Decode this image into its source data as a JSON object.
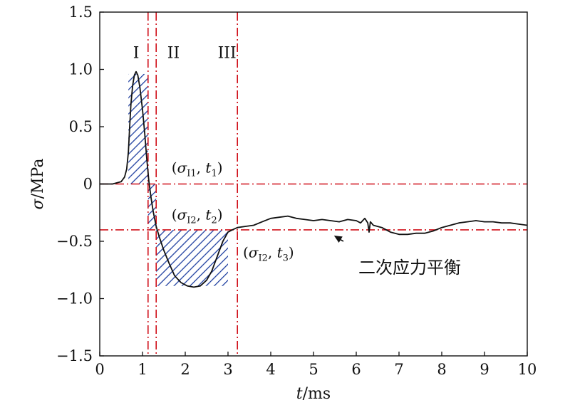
{
  "chart_data": {
    "type": "line",
    "xlabel": {
      "var": "t",
      "unit": "/ms"
    },
    "ylabel": {
      "var": "σ",
      "unit": "/MPa"
    },
    "xlim": [
      0,
      10
    ],
    "ylim": [
      -1.5,
      1.5
    ],
    "x_ticks": [
      0,
      1,
      2,
      3,
      4,
      5,
      6,
      7,
      8,
      9,
      10
    ],
    "y_ticks": [
      1.5,
      1.0,
      0.5,
      0,
      -0.5,
      -1.0,
      -1.5
    ],
    "y_tick_labels": [
      "1.5",
      "1.0",
      "0.5",
      "0",
      "−0.5",
      "−1.0",
      "−1.5"
    ],
    "colors": {
      "curve": "#111111",
      "guide": "#d0101a",
      "hatch": "#1f3fa0"
    },
    "reference_lines": {
      "vertical_x": [
        1.13,
        1.32,
        3.22
      ],
      "horizontal_y": [
        0,
        -0.4
      ]
    },
    "region_labels": [
      {
        "text": "I",
        "x": 0.78,
        "y": 1.1
      },
      {
        "text": "II",
        "x": 1.58,
        "y": 1.1
      },
      {
        "text": "III",
        "x": 2.76,
        "y": 1.1
      }
    ],
    "hatched_regions": [
      {
        "x0": 0.67,
        "x1": 1.13,
        "y0": 0,
        "y1": 0.96
      },
      {
        "x0": 1.13,
        "x1": 1.32,
        "y0": -0.4,
        "y1": 0
      },
      {
        "x0": 1.32,
        "x1": 3.0,
        "y0": -0.89,
        "y1": -0.4
      }
    ],
    "annotations": [
      {
        "base": "σ",
        "sub": "I1",
        "tvar": "t",
        "tsub": "1",
        "x": 1.68,
        "y": 0.1
      },
      {
        "base": "σ",
        "sub": "I2",
        "tvar": "t",
        "tsub": "2",
        "x": 1.68,
        "y": -0.31
      },
      {
        "base": "σ",
        "sub": "I2",
        "tvar": "t",
        "tsub": "3",
        "x": 3.35,
        "y": -0.64
      }
    ],
    "text_note": {
      "text": "二次应力平衡",
      "x": 6.05,
      "y": -0.78
    },
    "arrow": {
      "from": [
        5.7,
        -0.5
      ],
      "to": [
        5.48,
        -0.45
      ]
    },
    "series": [
      {
        "points": [
          [
            0,
            0
          ],
          [
            0.3,
            0
          ],
          [
            0.5,
            0.02
          ],
          [
            0.58,
            0.06
          ],
          [
            0.63,
            0.13
          ],
          [
            0.67,
            0.28
          ],
          [
            0.7,
            0.5
          ],
          [
            0.73,
            0.7
          ],
          [
            0.77,
            0.86
          ],
          [
            0.81,
            0.95
          ],
          [
            0.85,
            0.98
          ],
          [
            0.89,
            0.95
          ],
          [
            0.94,
            0.84
          ],
          [
            1.0,
            0.65
          ],
          [
            1.05,
            0.45
          ],
          [
            1.1,
            0.22
          ],
          [
            1.15,
            0.02
          ],
          [
            1.2,
            -0.12
          ],
          [
            1.25,
            -0.24
          ],
          [
            1.32,
            -0.37
          ],
          [
            1.4,
            -0.47
          ],
          [
            1.5,
            -0.58
          ],
          [
            1.62,
            -0.69
          ],
          [
            1.75,
            -0.8
          ],
          [
            1.9,
            -0.86
          ],
          [
            2.05,
            -0.89
          ],
          [
            2.2,
            -0.9
          ],
          [
            2.35,
            -0.89
          ],
          [
            2.5,
            -0.84
          ],
          [
            2.62,
            -0.76
          ],
          [
            2.75,
            -0.63
          ],
          [
            2.88,
            -0.5
          ],
          [
            3.0,
            -0.42
          ],
          [
            3.1,
            -0.4
          ],
          [
            3.22,
            -0.38
          ],
          [
            3.4,
            -0.37
          ],
          [
            3.6,
            -0.36
          ],
          [
            3.8,
            -0.33
          ],
          [
            4.0,
            -0.3
          ],
          [
            4.2,
            -0.29
          ],
          [
            4.4,
            -0.28
          ],
          [
            4.6,
            -0.3
          ],
          [
            4.8,
            -0.31
          ],
          [
            5.0,
            -0.32
          ],
          [
            5.2,
            -0.31
          ],
          [
            5.4,
            -0.32
          ],
          [
            5.6,
            -0.33
          ],
          [
            5.8,
            -0.31
          ],
          [
            6.0,
            -0.32
          ],
          [
            6.1,
            -0.34
          ],
          [
            6.2,
            -0.3
          ],
          [
            6.27,
            -0.34
          ],
          [
            6.3,
            -0.42
          ],
          [
            6.33,
            -0.33
          ],
          [
            6.4,
            -0.36
          ],
          [
            6.6,
            -0.38
          ],
          [
            6.8,
            -0.42
          ],
          [
            7.0,
            -0.44
          ],
          [
            7.2,
            -0.44
          ],
          [
            7.4,
            -0.43
          ],
          [
            7.6,
            -0.43
          ],
          [
            7.8,
            -0.41
          ],
          [
            8.0,
            -0.38
          ],
          [
            8.2,
            -0.36
          ],
          [
            8.4,
            -0.34
          ],
          [
            8.6,
            -0.33
          ],
          [
            8.8,
            -0.32
          ],
          [
            9.0,
            -0.33
          ],
          [
            9.2,
            -0.33
          ],
          [
            9.4,
            -0.34
          ],
          [
            9.6,
            -0.34
          ],
          [
            9.8,
            -0.35
          ],
          [
            10.0,
            -0.36
          ]
        ]
      }
    ]
  }
}
